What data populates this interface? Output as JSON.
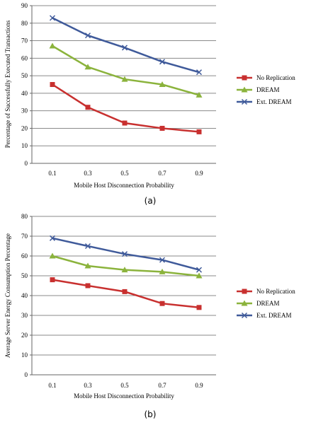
{
  "chart_data": [
    {
      "type": "line",
      "caption": "(a)",
      "xlabel": "Mobile Host Disconnection Probability",
      "ylabel": "Percentage of Successfully Executed Transactions",
      "x": [
        "0.1",
        "0.3",
        "0.5",
        "0.7",
        "0.9"
      ],
      "ylim": [
        0,
        90
      ],
      "yticks": [
        "0",
        "10",
        "20",
        "30",
        "40",
        "50",
        "60",
        "70",
        "80",
        "90"
      ],
      "grid": true,
      "legend_position": "right",
      "series": [
        {
          "name": "No Replication",
          "values": [
            45,
            32,
            23,
            20,
            18
          ],
          "color": "#c8302f",
          "marker": "square"
        },
        {
          "name": "DREAM",
          "values": [
            67,
            55,
            48,
            45,
            39
          ],
          "color": "#8bb33c",
          "marker": "triangle"
        },
        {
          "name": "Ext. DREAM",
          "values": [
            83,
            73,
            66,
            58,
            52
          ],
          "color": "#3f5a9a",
          "marker": "x"
        }
      ]
    },
    {
      "type": "line",
      "caption": "(b)",
      "xlabel": "Mobile Host Disconnection Probability",
      "ylabel": "Average Server Energy Consumption Percentage",
      "x": [
        "0.1",
        "0.3",
        "0.5",
        "0.7",
        "0.9"
      ],
      "ylim": [
        0,
        80
      ],
      "yticks": [
        "0",
        "10",
        "20",
        "30",
        "40",
        "50",
        "60",
        "70",
        "80"
      ],
      "grid": true,
      "legend_position": "right",
      "series": [
        {
          "name": "No Replication",
          "values": [
            48,
            45,
            42,
            36,
            34
          ],
          "color": "#c8302f",
          "marker": "square"
        },
        {
          "name": "DREAM",
          "values": [
            60,
            55,
            53,
            52,
            50
          ],
          "color": "#8bb33c",
          "marker": "triangle"
        },
        {
          "name": "Ext. DREAM",
          "values": [
            69,
            65,
            61,
            58,
            53
          ],
          "color": "#3f5a9a",
          "marker": "x"
        }
      ]
    }
  ]
}
